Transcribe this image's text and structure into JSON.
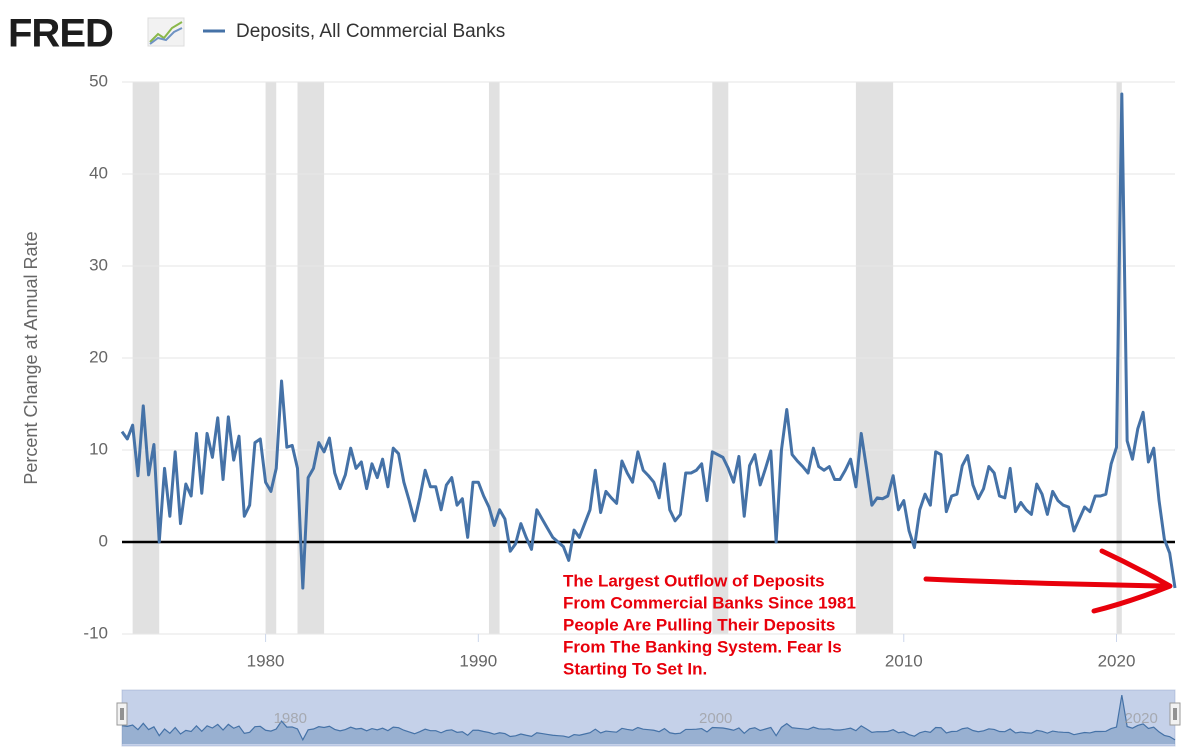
{
  "chart_data": {
    "type": "line",
    "logo": "FRED",
    "ylabel": "Percent Change at Annual Rate",
    "series": [
      {
        "name": "Deposits, All Commercial Banks",
        "color": "#4572a7",
        "x": [
          1973.25,
          1973.5,
          1973.75,
          1974,
          1974.25,
          1974.5,
          1974.75,
          1975,
          1975.25,
          1975.5,
          1975.75,
          1976,
          1976.25,
          1976.5,
          1976.75,
          1977,
          1977.25,
          1977.5,
          1977.75,
          1978,
          1978.25,
          1978.5,
          1978.75,
          1979,
          1979.25,
          1979.5,
          1979.75,
          1980,
          1980.25,
          1980.5,
          1980.75,
          1981,
          1981.25,
          1981.5,
          1981.75,
          1982,
          1982.25,
          1982.5,
          1982.75,
          1983,
          1983.25,
          1983.5,
          1983.75,
          1984,
          1984.25,
          1984.5,
          1984.75,
          1985,
          1985.25,
          1985.5,
          1985.75,
          1986,
          1986.25,
          1986.5,
          1986.75,
          1987,
          1987.25,
          1987.5,
          1987.75,
          1988,
          1988.25,
          1988.5,
          1988.75,
          1989,
          1989.25,
          1989.5,
          1989.75,
          1990,
          1990.25,
          1990.5,
          1990.75,
          1991,
          1991.25,
          1991.5,
          1991.75,
          1992,
          1992.25,
          1992.5,
          1992.75,
          1993,
          1993.25,
          1993.5,
          1993.75,
          1994,
          1994.25,
          1994.5,
          1994.75,
          1995,
          1995.25,
          1995.5,
          1995.75,
          1996,
          1996.25,
          1996.5,
          1996.75,
          1997,
          1997.25,
          1997.5,
          1997.75,
          1998,
          1998.25,
          1998.5,
          1998.75,
          1999,
          1999.25,
          1999.5,
          1999.75,
          2000,
          2000.25,
          2000.5,
          2000.75,
          2001,
          2001.25,
          2001.5,
          2001.75,
          2002,
          2002.25,
          2002.5,
          2002.75,
          2003,
          2003.25,
          2003.5,
          2003.75,
          2004,
          2004.25,
          2004.5,
          2004.75,
          2005,
          2005.25,
          2005.5,
          2005.75,
          2006,
          2006.25,
          2006.5,
          2006.75,
          2007,
          2007.25,
          2007.5,
          2007.75,
          2008,
          2008.25,
          2008.5,
          2008.75,
          2009,
          2009.25,
          2009.5,
          2009.75,
          2010,
          2010.25,
          2010.5,
          2010.75,
          2011,
          2011.25,
          2011.5,
          2011.75,
          2012,
          2012.25,
          2012.5,
          2012.75,
          2013,
          2013.25,
          2013.5,
          2013.75,
          2014,
          2014.25,
          2014.5,
          2014.75,
          2015,
          2015.25,
          2015.5,
          2015.75,
          2016,
          2016.25,
          2016.5,
          2016.75,
          2017,
          2017.25,
          2017.5,
          2017.75,
          2018,
          2018.25,
          2018.5,
          2018.75,
          2019,
          2019.25,
          2019.5,
          2019.75,
          2020,
          2020.25,
          2020.5,
          2020.75,
          2021,
          2021.25,
          2021.5,
          2021.75,
          2022,
          2022.25,
          2022.5,
          2022.75
        ],
        "values": [
          12,
          11.2,
          12.7,
          7.2,
          14.8,
          7.3,
          10.6,
          0,
          8,
          2.8,
          9.8,
          2,
          6.3,
          5,
          11.8,
          5.3,
          11.8,
          9.2,
          13.5,
          6.8,
          13.6,
          8.9,
          11.5,
          2.8,
          4,
          10.8,
          11.2,
          6.5,
          5.5,
          8,
          17.5,
          10.3,
          10.5,
          8,
          -5,
          7,
          8,
          10.8,
          9.8,
          11.3,
          7.5,
          5.8,
          7.3,
          10.2,
          8,
          8.7,
          5.8,
          8.5,
          7,
          9,
          6,
          10.2,
          9.6,
          6.5,
          4.5,
          2.3,
          4.8,
          7.8,
          6,
          6,
          3.5,
          6.2,
          7,
          4,
          4.7,
          0.5,
          6.5,
          6.5,
          5,
          3.8,
          1.8,
          3.5,
          2.5,
          -1,
          -0.2,
          2,
          0.5,
          -0.8,
          3.5,
          2.5,
          1.5,
          0.5,
          0,
          -0.5,
          -2,
          1.3,
          0.5,
          2,
          3.5,
          7.8,
          3.2,
          5.5,
          4.8,
          4.2,
          8.8,
          7.5,
          6.5,
          9.8,
          7.8,
          7.2,
          6.5,
          4.8,
          8.5,
          3.5,
          2.3,
          3,
          7.5,
          7.5,
          7.8,
          8.5,
          4.5,
          9.8,
          9.5,
          9.2,
          8,
          6.5,
          9.3,
          2.8,
          8.3,
          9.5,
          6.2,
          8,
          9.9,
          0,
          10,
          14.4,
          9.5,
          8.8,
          8.2,
          7.5,
          10.2,
          8.2,
          7.8,
          8.2,
          6.8,
          6.8,
          7.8,
          9,
          6,
          11.8,
          8,
          4,
          4.8,
          4.7,
          5,
          7.2,
          3.5,
          4.5,
          1.2,
          -0.6,
          3.5,
          5.2,
          4,
          9.8,
          9.5,
          3.3,
          5,
          5.2,
          8.3,
          9.4,
          6.2,
          4.7,
          5.8,
          8.2,
          7.5,
          5,
          4.8,
          8,
          3.3,
          4.3,
          3.5,
          3,
          6.3,
          5.2,
          3,
          5.5,
          4.5,
          4,
          3.8,
          1.2,
          2.5,
          3.8,
          3.3,
          5,
          5,
          5.2,
          8.5,
          10.3,
          48.7,
          11,
          9,
          12.3,
          14.1,
          8.7,
          10.2,
          4.5,
          0.3,
          -1.2,
          -5
        ]
      }
    ],
    "xlim": [
      1973.25,
      2022.75
    ],
    "xticks": [
      1980,
      1990,
      2010,
      2020
    ],
    "ylim": [
      -10,
      50
    ],
    "yticks": [
      -10,
      0,
      10,
      20,
      30,
      40,
      50
    ],
    "grid": true,
    "hline": 0,
    "recessions": [
      [
        1973.75,
        1975
      ],
      [
        1980,
        1980.5
      ],
      [
        1981.5,
        1982.75
      ],
      [
        1990.5,
        1991
      ],
      [
        2001,
        2001.75
      ],
      [
        2007.75,
        2009.5
      ],
      [
        2020,
        2020.25
      ]
    ],
    "recession_color": "#e1e1e1",
    "annotation": [
      "The Largest Outflow of Deposits",
      "From Commercial Banks Since 1981",
      "People Are Pulling Their Deposits",
      "From The Banking System. Fear Is",
      "Starting To Set In."
    ],
    "annotation_color": "#e8000b",
    "navigator": {
      "xticks": [
        1980,
        2000,
        2020
      ]
    }
  }
}
